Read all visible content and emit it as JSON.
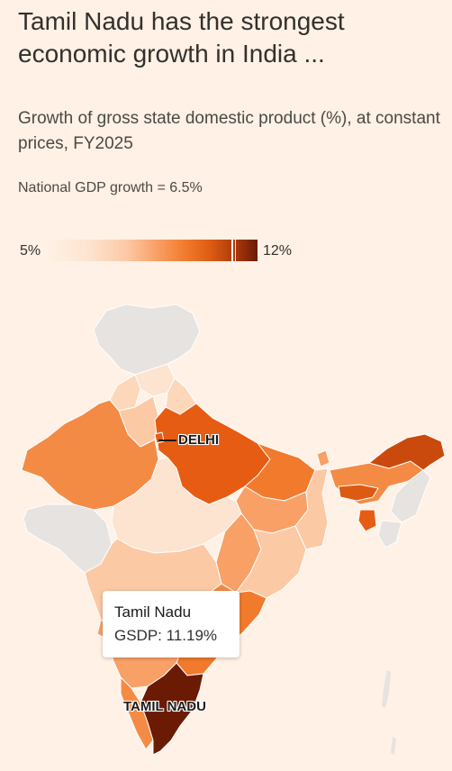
{
  "title": "Tamil Nadu has the strongest economic growth in India ...",
  "subtitle": "Growth of gross state domestic product (%), at constant prices, FY2025",
  "note": "National GDP growth = 6.5%",
  "legend": {
    "min_label": "5%",
    "max_label": "12%",
    "min": 5,
    "max": 12,
    "highlight_value": 11.19
  },
  "labels": {
    "delhi": "DELHI",
    "tamil_nadu": "TAMIL NADU"
  },
  "tooltip": {
    "state": "Tamil Nadu",
    "value_text": "GSDP: 11.19%",
    "value": 11.19
  },
  "colors": {
    "background": "#fff1e5",
    "no_data": "#e6e3e0",
    "scale_low": "#fde4d0",
    "scale_mid": "#f27a2c",
    "scale_high": "#6b1a04",
    "tamil_nadu": "#6b1a04"
  }
}
